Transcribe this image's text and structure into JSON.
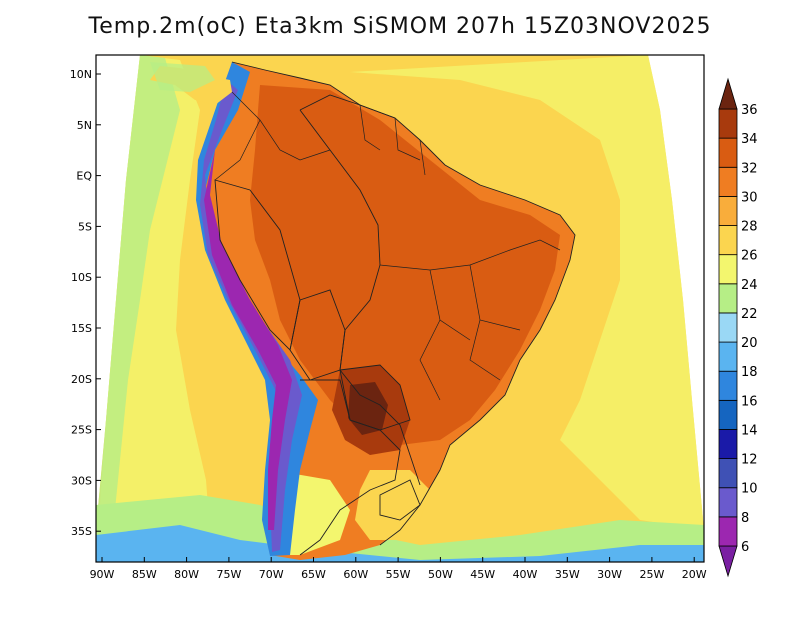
{
  "title": "Temp.2m(oC) Eta3km SiSMOM 207h 15Z03NOV2025",
  "lat_axis": {
    "labels": [
      "10N",
      "5N",
      "EQ",
      "5S",
      "10S",
      "15S",
      "20S",
      "25S",
      "30S",
      "35S"
    ]
  },
  "lon_axis": {
    "labels": [
      "90W",
      "85W",
      "80W",
      "75W",
      "70W",
      "65W",
      "60W",
      "55W",
      "50W",
      "45W",
      "40W",
      "35W",
      "30W",
      "25W",
      "20W"
    ]
  },
  "colorbar": {
    "labels": [
      "6",
      "8",
      "10",
      "12",
      "14",
      "16",
      "18",
      "20",
      "22",
      "24",
      "26",
      "28",
      "30",
      "32",
      "34",
      "36"
    ],
    "colors": [
      "#7a1fa2",
      "#9c27b0",
      "#6a5acd",
      "#3f51b5",
      "#1a1aa8",
      "#1565c0",
      "#2f86de",
      "#5ab4f0",
      "#9ad8f5",
      "#b6ee86",
      "#f3f66e",
      "#fbd54f",
      "#f9ad3b",
      "#ef7d22",
      "#d95c12",
      "#a83a0d",
      "#6b2410"
    ]
  },
  "colors": {
    "ocean_warm": "#fbd54f",
    "ocean_mid": "#f3f66e",
    "ocean_cool": "#b6ee86",
    "land_hot": "#ef7d22",
    "land_very_hot": "#d95c12",
    "land_extreme": "#a83a0d",
    "andes_cold": "#2f86de",
    "andes_colder": "#6a5acd",
    "andes_coldest": "#9c27b0"
  }
}
